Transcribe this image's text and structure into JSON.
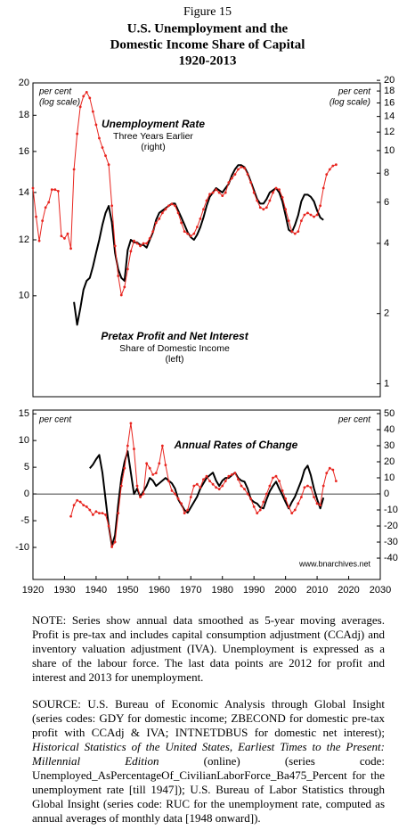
{
  "header": {
    "label": "Figure 15",
    "title": [
      "U.S. Unemployment and the",
      "Domestic Income Share of Capital",
      "1920-2013"
    ]
  },
  "chart_data": [
    {
      "type": "line",
      "log": true,
      "xlim": [
        1920,
        2030
      ],
      "ylim": [
        7.2,
        20
      ],
      "yticks": [
        10,
        12,
        14,
        16,
        18,
        20
      ],
      "y2lim": [
        0.88,
        19.5
      ],
      "y2ticks": [
        1,
        2,
        4,
        6,
        8,
        10,
        12,
        14,
        16,
        18,
        20
      ],
      "annotations": [
        "per cent",
        "(log scale)",
        "per cent",
        "(log scale)",
        "Three Years Earlier",
        "(right)",
        "Share of Domestic Income",
        "(left)"
      ],
      "series": [
        {
          "name": "Pretax Profit and Net Interest",
          "color": "#000000",
          "x": [
            1933,
            1934,
            1935,
            1936,
            1937,
            1938,
            1939,
            1940,
            1941,
            1942,
            1943,
            1944,
            1945,
            1946,
            1947,
            1948,
            1949,
            1950,
            1951,
            1952,
            1953,
            1954,
            1955,
            1956,
            1957,
            1958,
            1959,
            1960,
            1961,
            1962,
            1963,
            1964,
            1965,
            1966,
            1967,
            1968,
            1969,
            1970,
            1971,
            1972,
            1973,
            1974,
            1975,
            1976,
            1977,
            1978,
            1979,
            1980,
            1981,
            1982,
            1983,
            1984,
            1985,
            1986,
            1987,
            1988,
            1989,
            1990,
            1991,
            1992,
            1993,
            1994,
            1995,
            1996,
            1997,
            1998,
            1999,
            2000,
            2001,
            2002,
            2003,
            2004,
            2005,
            2006,
            2007,
            2008,
            2009,
            2010,
            2011,
            2012
          ],
          "values": [
            9.8,
            9.1,
            9.6,
            10.2,
            10.5,
            10.6,
            11.0,
            11.5,
            12.0,
            12.6,
            13.1,
            13.4,
            12.7,
            11.5,
            10.9,
            10.6,
            10.5,
            11.6,
            12.0,
            11.9,
            11.9,
            11.8,
            11.8,
            11.7,
            12.0,
            12.3,
            12.8,
            13.1,
            13.2,
            13.3,
            13.4,
            13.5,
            13.5,
            13.2,
            12.9,
            12.6,
            12.3,
            12.1,
            12.0,
            12.2,
            12.5,
            12.9,
            13.4,
            13.8,
            14.0,
            14.2,
            14.1,
            14.0,
            14.2,
            14.4,
            14.8,
            15.1,
            15.3,
            15.3,
            15.2,
            14.9,
            14.5,
            14.1,
            13.7,
            13.5,
            13.5,
            13.7,
            14.0,
            14.1,
            14.2,
            14.0,
            13.6,
            13.0,
            12.4,
            12.3,
            12.6,
            13.0,
            13.6,
            13.9,
            13.9,
            13.8,
            13.6,
            13.2,
            12.9,
            12.8
          ]
        },
        {
          "name": "Unemployment Rate",
          "color": "#e8251f",
          "axis": "y2",
          "marker": true,
          "x": [
            1920,
            1921,
            1922,
            1923,
            1924,
            1925,
            1926,
            1927,
            1928,
            1929,
            1930,
            1931,
            1932,
            1933,
            1934,
            1935,
            1936,
            1937,
            1938,
            1939,
            1940,
            1941,
            1942,
            1943,
            1944,
            1945,
            1946,
            1947,
            1948,
            1949,
            1950,
            1951,
            1952,
            1953,
            1954,
            1955,
            1956,
            1957,
            1958,
            1959,
            1960,
            1961,
            1962,
            1963,
            1964,
            1965,
            1966,
            1967,
            1968,
            1969,
            1970,
            1971,
            1972,
            1973,
            1974,
            1975,
            1976,
            1977,
            1978,
            1979,
            1980,
            1981,
            1982,
            1983,
            1984,
            1985,
            1986,
            1987,
            1988,
            1989,
            1990,
            1991,
            1992,
            1993,
            1994,
            1995,
            1996,
            1997,
            1998,
            1999,
            2000,
            2001,
            2002,
            2003,
            2004,
            2005,
            2006,
            2007,
            2008,
            2009,
            2010,
            2011,
            2012,
            2013,
            2014,
            2015,
            2016
          ],
          "values": [
            6.9,
            5.2,
            4.1,
            5.0,
            5.7,
            6.0,
            6.8,
            6.8,
            6.7,
            4.3,
            4.2,
            4.4,
            3.8,
            8.3,
            11.8,
            15.4,
            17.1,
            17.8,
            16.8,
            14.7,
            12.9,
            11.3,
            10.3,
            9.5,
            8.7,
            5.8,
            3.9,
            2.9,
            2.4,
            2.6,
            3.1,
            3.7,
            4.1,
            4.0,
            3.9,
            4.0,
            4.0,
            4.2,
            4.5,
            4.9,
            5.1,
            5.4,
            5.6,
            5.8,
            5.9,
            5.8,
            5.4,
            4.9,
            4.5,
            4.4,
            4.3,
            4.4,
            4.7,
            5.1,
            5.6,
            6.1,
            6.5,
            6.6,
            6.8,
            6.6,
            6.4,
            6.6,
            7.3,
            7.6,
            7.9,
            8.3,
            8.5,
            8.4,
            7.9,
            7.3,
            6.6,
            6.1,
            5.7,
            5.6,
            5.7,
            6.1,
            6.6,
            6.9,
            6.8,
            6.3,
            5.6,
            5.0,
            4.5,
            4.4,
            4.5,
            5.0,
            5.3,
            5.4,
            5.3,
            5.2,
            5.3,
            5.8,
            6.9,
            7.9,
            8.3,
            8.6,
            8.7
          ]
        }
      ]
    },
    {
      "type": "line",
      "log": false,
      "zero_line": true,
      "xlim": [
        1920,
        2030
      ],
      "xticks": [
        1920,
        1930,
        1940,
        1950,
        1960,
        1970,
        1980,
        1990,
        2000,
        2010,
        2020,
        2030
      ],
      "ylim": [
        -16,
        15.7
      ],
      "yticks": [
        -10,
        -5,
        0,
        5,
        10,
        15
      ],
      "y2lim": [
        -53.3,
        52.2
      ],
      "y2ticks": [
        -40,
        -30,
        -20,
        -10,
        0,
        10,
        20,
        30,
        40,
        50
      ],
      "annotations": [
        "per cent",
        "per cent",
        "Annual Rates of Change",
        "www.bnarchives.net"
      ],
      "series": [
        {
          "color": "#000000",
          "x": [
            1938,
            1939,
            1940,
            1941,
            1942,
            1943,
            1944,
            1945,
            1946,
            1947,
            1948,
            1949,
            1950,
            1951,
            1952,
            1953,
            1954,
            1955,
            1956,
            1957,
            1958,
            1959,
            1960,
            1961,
            1962,
            1963,
            1964,
            1965,
            1966,
            1967,
            1968,
            1969,
            1970,
            1971,
            1972,
            1973,
            1974,
            1975,
            1976,
            1977,
            1978,
            1979,
            1980,
            1981,
            1982,
            1983,
            1984,
            1985,
            1986,
            1987,
            1988,
            1989,
            1990,
            1991,
            1992,
            1993,
            1994,
            1995,
            1996,
            1997,
            1998,
            1999,
            2000,
            2001,
            2002,
            2003,
            2004,
            2005,
            2006,
            2007,
            2008,
            2009,
            2010,
            2011,
            2012
          ],
          "values": [
            4.8,
            5.5,
            6.5,
            7.3,
            4,
            -1,
            -6,
            -9.7,
            -7.7,
            -2,
            3,
            6,
            8,
            4,
            0,
            1,
            -0.5,
            0.5,
            1.5,
            3,
            2.5,
            1.5,
            2,
            2.5,
            3,
            2.5,
            2,
            1,
            -1,
            -2,
            -3,
            -3.5,
            -2.5,
            -1.5,
            -0.5,
            1,
            2,
            3,
            3.5,
            4,
            2.5,
            1.5,
            2.5,
            3,
            3,
            3.5,
            4,
            3,
            2.5,
            2.3,
            1,
            -1,
            -1.5,
            -1.8,
            -2.5,
            -2.7,
            -1,
            0.5,
            1.5,
            2.3,
            1,
            -0.2,
            -1.5,
            -2.7,
            -1.5,
            -0.5,
            1,
            2.5,
            4.5,
            5.3,
            3.5,
            1,
            -1,
            -2.7,
            -0.7
          ]
        },
        {
          "color": "#e8251f",
          "axis": "y2",
          "marker": true,
          "x": [
            1932,
            1933,
            1934,
            1935,
            1936,
            1937,
            1938,
            1939,
            1940,
            1941,
            1942,
            1943,
            1944,
            1945,
            1946,
            1947,
            1948,
            1949,
            1950,
            1951,
            1952,
            1953,
            1954,
            1955,
            1956,
            1957,
            1958,
            1959,
            1960,
            1961,
            1962,
            1963,
            1964,
            1965,
            1966,
            1967,
            1968,
            1969,
            1970,
            1971,
            1972,
            1973,
            1974,
            1975,
            1976,
            1977,
            1978,
            1979,
            1980,
            1981,
            1982,
            1983,
            1984,
            1985,
            1986,
            1987,
            1988,
            1989,
            1990,
            1991,
            1992,
            1993,
            1994,
            1995,
            1996,
            1997,
            1998,
            1999,
            2000,
            2001,
            2002,
            2003,
            2004,
            2005,
            2006,
            2007,
            2008,
            2009,
            2010,
            2011,
            2012,
            2013,
            2014,
            2015,
            2016
          ],
          "values": [
            -14,
            -7,
            -4,
            -5,
            -7,
            -8,
            -10,
            -13,
            -11,
            -12,
            -12,
            -13,
            -20,
            -33,
            -30,
            -12,
            5,
            16,
            30,
            44,
            28,
            5,
            -2,
            0,
            19,
            16,
            12,
            13,
            19,
            30,
            18,
            8,
            2,
            0,
            -3,
            -6,
            -12,
            -10,
            -2,
            5,
            6,
            4,
            9,
            11,
            8,
            6,
            4,
            3,
            5,
            8,
            11,
            12,
            13,
            9,
            5,
            3,
            0,
            -3,
            -8,
            -12,
            -10,
            -5,
            0,
            5,
            10,
            11,
            8,
            2,
            -3,
            -8,
            -12,
            -10,
            -6,
            -2,
            4,
            5,
            4,
            -2,
            -6,
            -7,
            5,
            13,
            16,
            15,
            8
          ]
        }
      ]
    }
  ],
  "notes": {
    "note": "NOTE: Series show annual data smoothed as 5-year moving averages. Profit is pre-tax and includes capital consumption adjustment (CCAdj) and inventory valuation adjustment (IVA). Unemployment is expressed as a share of the labour force. The last data points are 2012 for profit and interest and 2013 for unemployment.",
    "source": [
      "SOURCE: U.S. Bureau of Economic Analysis through Global Insight (series codes: GDY for domestic income; ZBECOND for domestic pre-tax profit with CCAdj & IVA; INTNETDBUS for domestic net interest); ",
      "Historical Statistics of the United States, Earliest Times to the Present: Millennial Edition",
      " (online) (series code: Unemployed_AsPercentageOf_CivilianLaborForce_Ba475_Percent for the unemployment rate [till 1947]); U.S. Bureau of Labor Statistics through Global Insight (series code: RUC for the unemployment rate, computed as annual averages of monthly data [1948 onward])."
    ]
  }
}
